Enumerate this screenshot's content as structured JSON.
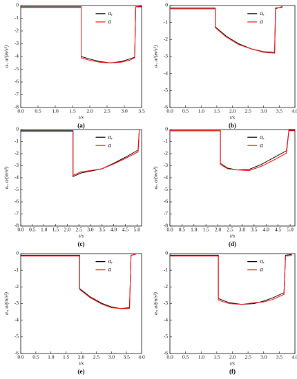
{
  "chart_data": [
    {
      "type": "line",
      "label": "(a)",
      "xlabel": "t/s",
      "ylabel": "aᵣ, a/(m/s²)",
      "legend": "upper right",
      "x": [
        0,
        1.75,
        1.75,
        2.0,
        2.3,
        2.6,
        2.9,
        3.15,
        3.3,
        3.33,
        3.5
      ],
      "series": [
        {
          "name": "aᵣ",
          "color": "#000000",
          "values": [
            -0.1,
            -0.1,
            -4.0,
            -4.2,
            -4.4,
            -4.5,
            -4.4,
            -4.2,
            -4.05,
            -0.1,
            -0.1
          ]
        },
        {
          "name": "a",
          "color": "#ff0000",
          "values": [
            -0.15,
            -0.15,
            -4.1,
            -4.3,
            -4.45,
            -4.5,
            -4.45,
            -4.3,
            -4.1,
            -0.1,
            -0.05
          ]
        }
      ],
      "xlim": [
        0,
        3.5
      ],
      "xticks": [
        {
          "value": 0,
          "label": "0.0"
        },
        0.5,
        {
          "value": 1,
          "label": "1.0"
        },
        1.5,
        {
          "value": 2,
          "label": "2.0"
        },
        2.5,
        {
          "value": 3,
          "label": "3.0"
        },
        3.5
      ],
      "ylim": [
        -8,
        0
      ],
      "yticks": [
        0,
        -1,
        -2,
        -3,
        -4,
        -5,
        -6,
        -7,
        -8
      ]
    },
    {
      "type": "line",
      "label": "(b)",
      "xlabel": "t/s",
      "ylabel": "aᵣ, a/(m/s²)",
      "legend": "upper right",
      "x": [
        0,
        1.45,
        1.45,
        1.8,
        2.2,
        2.6,
        3.0,
        3.35,
        3.38,
        3.6
      ],
      "series": [
        {
          "name": "aᵣ",
          "color": "#000000",
          "values": [
            -0.15,
            -0.15,
            -1.25,
            -1.8,
            -2.25,
            -2.55,
            -2.72,
            -2.75,
            -0.15,
            -0.1
          ]
        },
        {
          "name": "a",
          "color": "#ff0000",
          "values": [
            -0.2,
            -0.2,
            -1.3,
            -1.85,
            -2.3,
            -2.55,
            -2.75,
            -2.8,
            -0.2,
            -0.05
          ]
        }
      ],
      "xlim": [
        0,
        4
      ],
      "xticks": [
        {
          "value": 0,
          "label": "0.0"
        },
        0.5,
        {
          "value": 1,
          "label": "1.0"
        },
        1.5,
        {
          "value": 2,
          "label": "2.0"
        },
        2.5,
        {
          "value": 3,
          "label": "3.0"
        },
        3.5,
        {
          "value": 4,
          "label": "4.0"
        }
      ],
      "ylim": [
        -6,
        0
      ],
      "yticks": [
        0,
        -1,
        -2,
        -3,
        -4,
        -5,
        -6
      ]
    },
    {
      "type": "line",
      "label": "(c)",
      "xlabel": "t/s",
      "ylabel": "aᵣ, a/(m/s²)",
      "legend": "upper right",
      "x": [
        0,
        2.25,
        2.25,
        2.6,
        3.0,
        3.5,
        4.0,
        4.5,
        5.05,
        5.1
      ],
      "series": [
        {
          "name": "aᵣ",
          "color": "#000000",
          "values": [
            -0.1,
            -0.1,
            -3.9,
            -3.6,
            -3.45,
            -3.25,
            -2.8,
            -2.3,
            -1.7,
            -0.05
          ]
        },
        {
          "name": "a",
          "color": "#ff0000",
          "values": [
            -0.15,
            -0.15,
            -3.8,
            -3.5,
            -3.4,
            -3.25,
            -2.85,
            -2.4,
            -1.85,
            -0.1
          ]
        }
      ],
      "xlim": [
        0,
        5.2
      ],
      "xticks": [
        {
          "value": 0,
          "label": "0.0"
        },
        0.5,
        {
          "value": 1,
          "label": "1.0"
        },
        1.5,
        {
          "value": 2,
          "label": "2.0"
        },
        2.5,
        {
          "value": 3,
          "label": "3.0"
        },
        3.5,
        {
          "value": 4,
          "label": "4.0"
        },
        4.5,
        {
          "value": 5,
          "label": "5.0"
        }
      ],
      "ylim": [
        -8,
        0
      ],
      "yticks": [
        0,
        -1,
        -2,
        -3,
        -4,
        -5,
        -6,
        -7,
        -8
      ]
    },
    {
      "type": "line",
      "label": "(d)",
      "xlabel": "t/s",
      "ylabel": "aᵣ, a/(m/s²)",
      "legend": "upper right",
      "x": [
        0,
        2.1,
        2.1,
        2.4,
        2.8,
        3.3,
        3.8,
        4.3,
        4.85,
        4.95,
        5.2
      ],
      "series": [
        {
          "name": "aᵣ",
          "color": "#000000",
          "values": [
            -0.1,
            -0.1,
            -2.8,
            -3.2,
            -3.35,
            -3.3,
            -2.9,
            -2.35,
            -1.75,
            -0.05,
            -0.05
          ]
        },
        {
          "name": "a",
          "color": "#ff0000",
          "values": [
            -0.1,
            -0.1,
            -2.9,
            -3.25,
            -3.35,
            -3.4,
            -3.05,
            -2.55,
            -1.95,
            -0.1,
            -0.1
          ]
        }
      ],
      "xlim": [
        0,
        5.2
      ],
      "xticks": [
        {
          "value": 0,
          "label": "0.0"
        },
        0.5,
        {
          "value": 1,
          "label": "1.0"
        },
        1.5,
        {
          "value": 2,
          "label": "2.0"
        },
        2.5,
        {
          "value": 3,
          "label": "3.0"
        },
        3.5,
        {
          "value": 4,
          "label": "4.0"
        },
        4.5,
        {
          "value": 5,
          "label": "5.0"
        }
      ],
      "ylim": [
        -8,
        0
      ],
      "yticks": [
        0,
        -1,
        -2,
        -3,
        -4,
        -5,
        -6,
        -7,
        -8
      ]
    },
    {
      "type": "line",
      "label": "(e)",
      "xlabel": "t/s",
      "ylabel": "aᵣ, a/(m/s²)",
      "legend": "upper right",
      "x": [
        0,
        1.95,
        1.95,
        2.3,
        2.7,
        3.0,
        3.3,
        3.6,
        3.65,
        3.8
      ],
      "series": [
        {
          "name": "aᵣ",
          "color": "#000000",
          "values": [
            -0.1,
            -0.1,
            -2.1,
            -2.6,
            -3.0,
            -3.2,
            -3.3,
            -3.25,
            -0.1,
            -0.05
          ]
        },
        {
          "name": "a",
          "color": "#ff0000",
          "values": [
            -0.15,
            -0.15,
            -2.15,
            -2.65,
            -3.05,
            -3.25,
            -3.3,
            -3.3,
            -0.1,
            -0.05
          ]
        }
      ],
      "xlim": [
        0,
        4
      ],
      "xticks": [
        {
          "value": 0,
          "label": "0.0"
        },
        0.5,
        {
          "value": 1,
          "label": "1.0"
        },
        1.5,
        {
          "value": 2,
          "label": "2.0"
        },
        2.5,
        {
          "value": 3,
          "label": "3.0"
        },
        3.5,
        {
          "value": 4,
          "label": "4.0"
        }
      ],
      "ylim": [
        -6,
        0
      ],
      "yticks": [
        0,
        -1,
        -2,
        -3,
        -4,
        -5,
        -6
      ]
    },
    {
      "type": "line",
      "label": "(f)",
      "xlabel": "t/s",
      "ylabel": "aᵣ, a/(m/s²)",
      "legend": "upper right",
      "x": [
        0,
        1.55,
        1.55,
        1.9,
        2.3,
        2.7,
        3.0,
        3.3,
        3.65,
        3.7,
        3.9
      ],
      "series": [
        {
          "name": "aᵣ",
          "color": "#000000",
          "values": [
            -0.1,
            -0.1,
            -2.7,
            -2.95,
            -3.05,
            -3.0,
            -2.85,
            -2.65,
            -2.35,
            -0.1,
            -0.05
          ]
        },
        {
          "name": "a",
          "color": "#ff0000",
          "values": [
            -0.15,
            -0.15,
            -2.8,
            -3.0,
            -3.05,
            -2.95,
            -2.9,
            -2.75,
            -2.45,
            -0.15,
            -0.1
          ]
        }
      ],
      "xlim": [
        0,
        4
      ],
      "xticks": [
        {
          "value": 0,
          "label": "0.0"
        },
        0.5,
        {
          "value": 1,
          "label": "1.0"
        },
        1.5,
        {
          "value": 2,
          "label": "2.0"
        },
        2.5,
        {
          "value": 3,
          "label": "3.0"
        },
        3.5,
        {
          "value": 4,
          "label": "4.0"
        }
      ],
      "ylim": [
        -6,
        0
      ],
      "yticks": [
        0,
        -1,
        -2,
        -3,
        -4,
        -5,
        -6
      ]
    }
  ]
}
